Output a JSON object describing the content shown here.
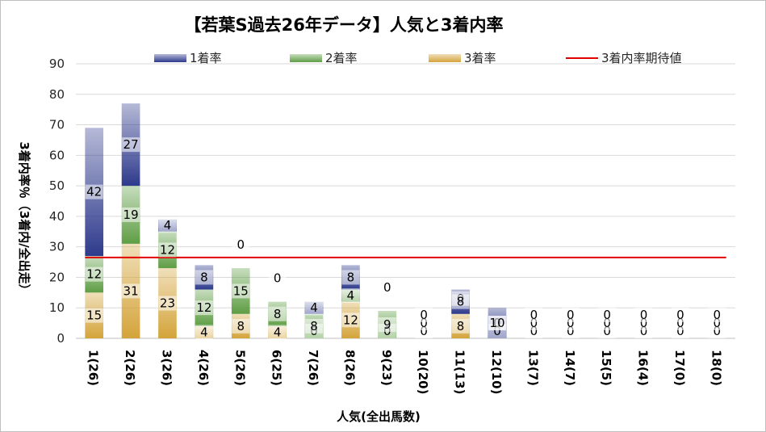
{
  "chart_data": {
    "type": "bar",
    "stacked": true,
    "title": "【若葉S過去26年データ】人気と3着内率",
    "xlabel": "人気(全出馬数)",
    "ylabel": "3着内率％（3着内/全出走）",
    "ylim": [
      0,
      90
    ],
    "yticks": [
      0,
      10,
      20,
      30,
      40,
      50,
      60,
      70,
      80,
      90
    ],
    "grid": true,
    "legend_position": "top",
    "categories": [
      "1(26)",
      "2(26)",
      "3(26)",
      "4(26)",
      "5(26)",
      "6(25)",
      "7(26)",
      "8(26)",
      "9(23)",
      "10(20)",
      "11(13)",
      "12(10)",
      "13(7)",
      "14(7)",
      "15(5)",
      "16(4)",
      "17(0)",
      "18(0)"
    ],
    "series": [
      {
        "name": "3着率",
        "color": "#d4a43a",
        "values": [
          15,
          31,
          23,
          4,
          8,
          4,
          0,
          12,
          0,
          0,
          8,
          0,
          0,
          0,
          0,
          0,
          0,
          0
        ]
      },
      {
        "name": "2着率",
        "color": "#5f9e45",
        "values": [
          12,
          19,
          12,
          12,
          15,
          8,
          8,
          4,
          9,
          0,
          0,
          0,
          0,
          0,
          0,
          0,
          0,
          0
        ]
      },
      {
        "name": "1着率",
        "color": "#2e3a8c",
        "values": [
          42,
          27,
          4,
          8,
          0,
          0,
          4,
          8,
          0,
          0,
          8,
          10,
          0,
          0,
          0,
          0,
          0,
          0
        ]
      }
    ],
    "reference_line": {
      "name": "3着内率期待値",
      "value": 26.5,
      "color": "#e00000"
    }
  }
}
